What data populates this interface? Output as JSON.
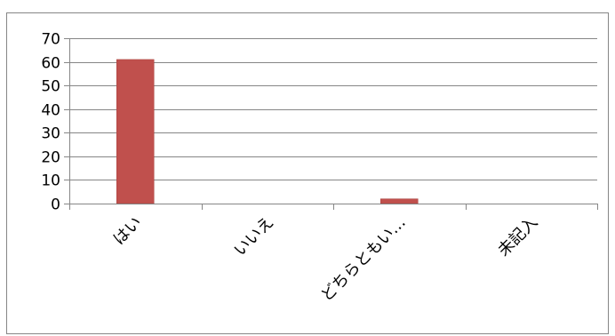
{
  "chart_data": {
    "type": "bar",
    "categories": [
      "はい",
      "いいえ",
      "どちらともい…",
      "未記入"
    ],
    "values": [
      61,
      0,
      2,
      0
    ],
    "ylim": [
      0,
      70
    ],
    "yticks": [
      0,
      10,
      20,
      30,
      40,
      50,
      60,
      70
    ],
    "grid": true,
    "legend": "none",
    "colors": {
      "bar": "#c0504d",
      "bar_border": "#a7403d",
      "grid": "#868686",
      "axis": "#868686",
      "frame": "#868686"
    }
  }
}
